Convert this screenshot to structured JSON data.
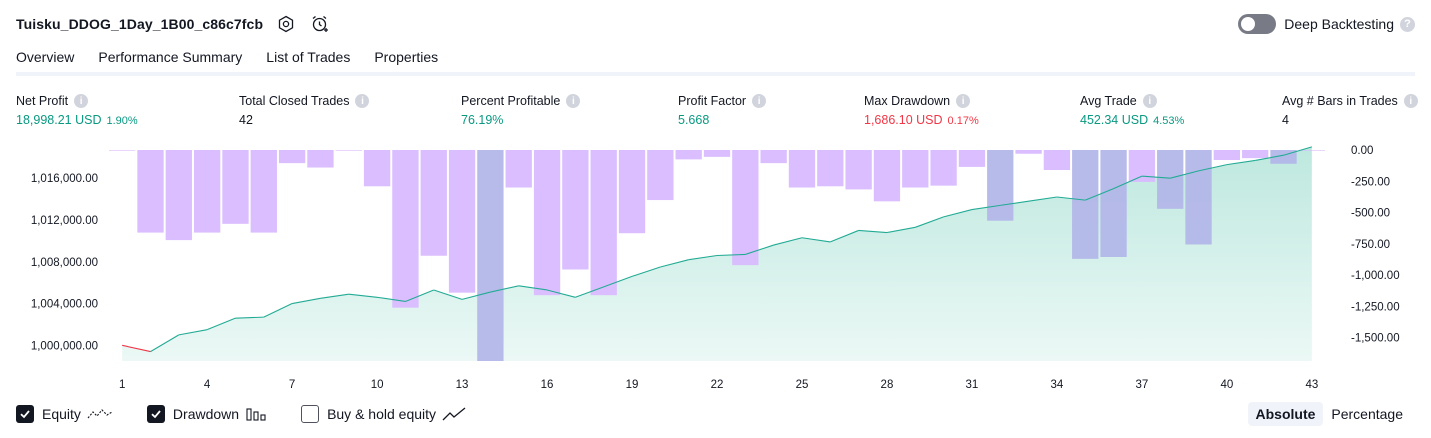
{
  "header": {
    "strategy_name": "Tuisku_DDOG_1Day_1B00_c86c7fcb",
    "settings_icon": "hexagon-gear-icon",
    "alert_icon": "alarm-clock-plus-icon",
    "deep_backtesting_label": "Deep Backtesting",
    "deep_backtesting_enabled": false
  },
  "tabs": [
    {
      "label": "Overview",
      "active": true
    },
    {
      "label": "Performance Summary",
      "active": false
    },
    {
      "label": "List of Trades",
      "active": false
    },
    {
      "label": "Properties",
      "active": false
    }
  ],
  "metrics": {
    "net_profit": {
      "label": "Net Profit",
      "value": "18,998.21 USD",
      "pct": "1.90%"
    },
    "total_closed_trades": {
      "label": "Total Closed Trades",
      "value": "42"
    },
    "percent_profitable": {
      "label": "Percent Profitable",
      "value": "76.19%"
    },
    "profit_factor": {
      "label": "Profit Factor",
      "value": "5.668"
    },
    "max_drawdown": {
      "label": "Max Drawdown",
      "value": "1,686.10 USD",
      "pct": "0.17%"
    },
    "avg_trade": {
      "label": "Avg Trade",
      "value": "452.34 USD",
      "pct": "4.53%"
    },
    "avg_bars": {
      "label": "Avg # Bars in Trades",
      "value": "4"
    }
  },
  "colors": {
    "positive": "#089981",
    "negative": "#f23645",
    "equity_line": "#22ab94",
    "equity_fill": "#b2e4d9",
    "drawdown_bar": "#d9bbff",
    "overlap_bar": "#b3b7e8"
  },
  "chart_data": {
    "type": "area",
    "x_label_ticks": [
      1,
      4,
      7,
      10,
      13,
      16,
      19,
      22,
      25,
      28,
      31,
      34,
      37,
      40,
      43
    ],
    "left_axis": {
      "ticks": [
        "1,016,000.00",
        "1,012,000.00",
        "1,008,000.00",
        "1,004,000.00",
        "1,000,000.00"
      ],
      "tick_values": [
        1016000,
        1012000,
        1008000,
        1004000,
        1000000
      ],
      "range": [
        998500,
        1018700
      ]
    },
    "right_axis": {
      "ticks": [
        "0.00",
        "-250.00",
        "-500.00",
        "-750.00",
        "-1,000.00",
        "-1,250.00",
        "-1,500.00"
      ],
      "tick_values": [
        0,
        -250,
        -500,
        -750,
        -1000,
        -1250,
        -1500
      ],
      "range": [
        -1686.1,
        0
      ]
    },
    "series": [
      {
        "name": "Equity",
        "x": [
          1,
          2,
          3,
          4,
          5,
          6,
          7,
          8,
          9,
          10,
          11,
          12,
          13,
          14,
          15,
          16,
          17,
          18,
          19,
          20,
          21,
          22,
          23,
          24,
          25,
          26,
          27,
          28,
          29,
          30,
          31,
          32,
          33,
          34,
          35,
          36,
          37,
          38,
          39,
          40,
          41,
          42,
          43
        ],
        "values": [
          1000000,
          999400,
          1001000,
          1001500,
          1002600,
          1002700,
          1004000,
          1004500,
          1004900,
          1004600,
          1004200,
          1005300,
          1004400,
          1005100,
          1005700,
          1005300,
          1004600,
          1005600,
          1006600,
          1007500,
          1008200,
          1008600,
          1008700,
          1009600,
          1010300,
          1009900,
          1011000,
          1010800,
          1011300,
          1012300,
          1013000,
          1013400,
          1013800,
          1014200,
          1013900,
          1015000,
          1016200,
          1016000,
          1016700,
          1017300,
          1017700,
          1018200,
          1019000
        ],
        "segment_colors": {
          "negative_until_x": 2
        }
      },
      {
        "name": "Drawdown",
        "x": [
          1,
          2,
          3,
          4,
          5,
          6,
          7,
          8,
          9,
          10,
          11,
          12,
          13,
          14,
          15,
          16,
          17,
          18,
          19,
          20,
          21,
          22,
          23,
          24,
          25,
          26,
          27,
          28,
          29,
          30,
          31,
          32,
          33,
          34,
          35,
          36,
          37,
          38,
          39,
          40,
          41,
          42,
          43
        ],
        "values": [
          -5,
          -660,
          -720,
          -660,
          -590,
          -660,
          -105,
          -140,
          -5,
          -290,
          -1260,
          -845,
          -1140,
          -1686.1,
          -300,
          -1160,
          -955,
          -1160,
          -665,
          -400,
          -75,
          -55,
          -920,
          -105,
          -300,
          -290,
          -315,
          -410,
          -300,
          -285,
          -135,
          -565,
          -30,
          -160,
          -870,
          -855,
          -255,
          -470,
          -755,
          -80,
          -65,
          -110,
          0
        ],
        "overlap_x": [
          14,
          32,
          35,
          36,
          38,
          39,
          42
        ]
      }
    ],
    "legend": [
      {
        "name": "Equity",
        "checked": true,
        "icon": "equity-line-icon"
      },
      {
        "name": "Drawdown",
        "checked": true,
        "icon": "drawdown-bars-icon"
      },
      {
        "name": "Buy & hold equity",
        "checked": false,
        "icon": "buy-hold-line-icon"
      }
    ],
    "grid": false
  },
  "scale_switch": {
    "absolute": "Absolute",
    "percentage": "Percentage",
    "active": "absolute"
  }
}
